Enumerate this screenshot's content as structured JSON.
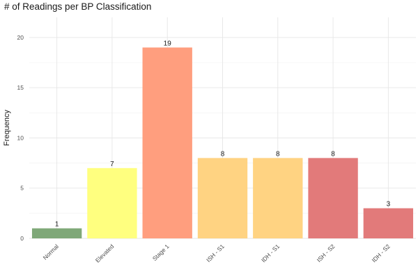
{
  "chart_data": {
    "type": "bar",
    "title": "# of Readings per BP Classification",
    "xlabel": "",
    "ylabel": "Frequency",
    "categories": [
      "Normal",
      "Elevated",
      "Stage 1",
      "ISH - S1",
      "IDH - S1",
      "ISH - S2",
      "IDH - S2"
    ],
    "values": [
      1,
      7,
      19,
      8,
      8,
      8,
      3
    ],
    "colors": [
      "#7fa878",
      "#ffff7f",
      "#ff9e7e",
      "#ffd382",
      "#ffd382",
      "#e27a7a",
      "#e27a7a"
    ],
    "ylim": [
      0,
      22
    ],
    "yticks": [
      0,
      5,
      10,
      15,
      20
    ],
    "grid": true,
    "data_labels": true
  }
}
